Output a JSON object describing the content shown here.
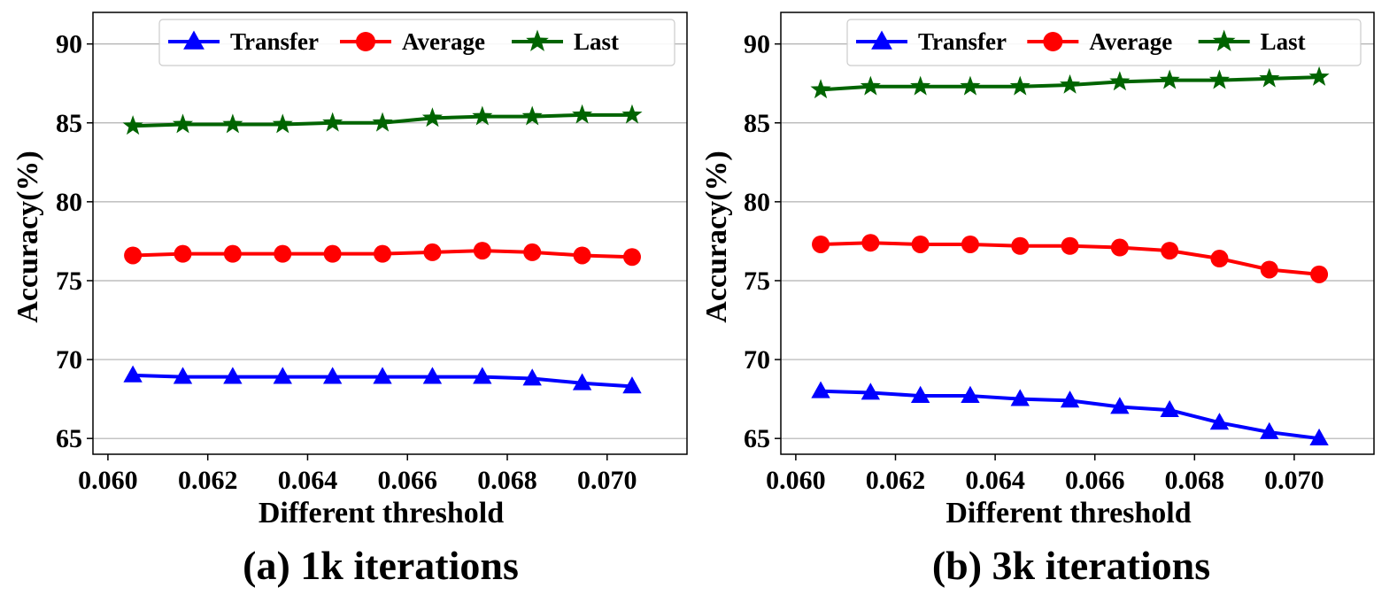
{
  "chart_data": [
    {
      "type": "line",
      "caption": "(a) 1k iterations",
      "xlabel": "Different threshold",
      "ylabel": "Accuracy(%)",
      "xlim": [
        0.0597,
        0.0716
      ],
      "ylim": [
        64,
        92
      ],
      "xticks": [
        0.06,
        0.062,
        0.064,
        0.066,
        0.068,
        0.07
      ],
      "xtick_labels": [
        "0.060",
        "0.062",
        "0.064",
        "0.066",
        "0.068",
        "0.070"
      ],
      "yticks": [
        65,
        70,
        75,
        80,
        85,
        90
      ],
      "ytick_labels": [
        "65",
        "70",
        "75",
        "80",
        "85",
        "90"
      ],
      "grid": "horizontal",
      "legend_position": "top-right",
      "x": [
        0.0605,
        0.0615,
        0.0625,
        0.0635,
        0.0645,
        0.0655,
        0.0665,
        0.0675,
        0.0685,
        0.0695,
        0.0705
      ],
      "series": [
        {
          "name": "Transfer",
          "color": "#0000ff",
          "marker": "triangle",
          "values": [
            69.0,
            68.9,
            68.9,
            68.9,
            68.9,
            68.9,
            68.9,
            68.9,
            68.8,
            68.5,
            68.3
          ]
        },
        {
          "name": "Average",
          "color": "#ff0000",
          "marker": "circle",
          "values": [
            76.6,
            76.7,
            76.7,
            76.7,
            76.7,
            76.7,
            76.8,
            76.9,
            76.8,
            76.6,
            76.5
          ]
        },
        {
          "name": "Last",
          "color": "#006400",
          "marker": "star",
          "values": [
            84.8,
            84.9,
            84.9,
            84.9,
            85.0,
            85.0,
            85.3,
            85.4,
            85.4,
            85.5,
            85.5
          ]
        }
      ]
    },
    {
      "type": "line",
      "caption": "(b) 3k iterations",
      "xlabel": "Different threshold",
      "ylabel": "Accuracy(%)",
      "xlim": [
        0.0597,
        0.0716
      ],
      "ylim": [
        64,
        92
      ],
      "xticks": [
        0.06,
        0.062,
        0.064,
        0.066,
        0.068,
        0.07
      ],
      "xtick_labels": [
        "0.060",
        "0.062",
        "0.064",
        "0.066",
        "0.068",
        "0.070"
      ],
      "yticks": [
        65,
        70,
        75,
        80,
        85,
        90
      ],
      "ytick_labels": [
        "65",
        "70",
        "75",
        "80",
        "85",
        "90"
      ],
      "grid": "horizontal",
      "legend_position": "top-right",
      "x": [
        0.0605,
        0.0615,
        0.0625,
        0.0635,
        0.0645,
        0.0655,
        0.0665,
        0.0675,
        0.0685,
        0.0695,
        0.0705
      ],
      "series": [
        {
          "name": "Transfer",
          "color": "#0000ff",
          "marker": "triangle",
          "values": [
            68.0,
            67.9,
            67.7,
            67.7,
            67.5,
            67.4,
            67.0,
            66.8,
            66.0,
            65.4,
            65.0
          ]
        },
        {
          "name": "Average",
          "color": "#ff0000",
          "marker": "circle",
          "values": [
            77.3,
            77.4,
            77.3,
            77.3,
            77.2,
            77.2,
            77.1,
            76.9,
            76.4,
            75.7,
            75.4
          ]
        },
        {
          "name": "Last",
          "color": "#006400",
          "marker": "star",
          "values": [
            87.1,
            87.3,
            87.3,
            87.3,
            87.3,
            87.4,
            87.6,
            87.7,
            87.7,
            87.8,
            87.9
          ]
        }
      ]
    }
  ]
}
